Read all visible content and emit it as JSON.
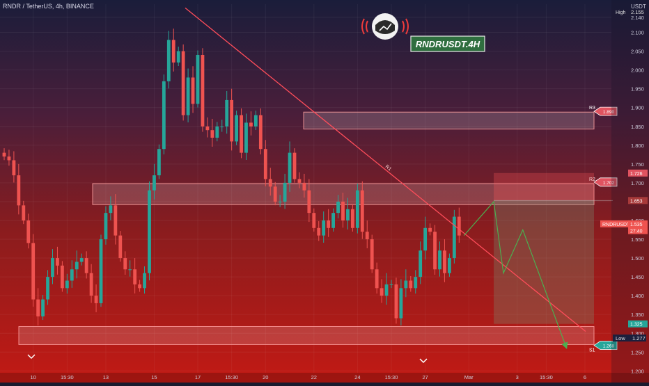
{
  "header": {
    "symbol_line": "RNDR / TetherUS, 4h, BINANCE",
    "currency": "USDT",
    "high_label": "High",
    "high_value": "2.155"
  },
  "banner": {
    "title": "RNDRUSDT.4H"
  },
  "colors": {
    "up": "#26a69a",
    "down": "#ef5350",
    "trendline": "#ff4d5a",
    "projection": "#4caf50",
    "zone_fill": "rgba(255,255,255,0.16)",
    "zone_stroke": "rgba(255,160,160,0.85)"
  },
  "chart_data": {
    "type": "candlestick",
    "y_axis": {
      "ylim": [
        1.195,
        2.175
      ],
      "ticks": [
        "1.200",
        "1.250",
        "1.300",
        "1.350",
        "1.400",
        "1.450",
        "1.500",
        "1.550",
        "1.600",
        "1.650",
        "1.700",
        "1.750",
        "1.800",
        "1.850",
        "1.900",
        "1.950",
        "2.000",
        "2.050",
        "2.100",
        "2.140"
      ]
    },
    "x_axis": {
      "ticks": [
        {
          "label": "10",
          "bar": 6
        },
        {
          "label": "15:30",
          "bar": 13
        },
        {
          "label": "13",
          "bar": 21
        },
        {
          "label": "15",
          "bar": 31
        },
        {
          "label": "17",
          "bar": 40
        },
        {
          "label": "15:30",
          "bar": 47
        },
        {
          "label": "20",
          "bar": 54
        },
        {
          "label": "22",
          "bar": 64
        },
        {
          "label": "24",
          "bar": 73
        },
        {
          "label": "15:30",
          "bar": 80
        },
        {
          "label": "27",
          "bar": 87
        },
        {
          "label": "Mar",
          "bar": 96
        },
        {
          "label": "3",
          "bar": 106
        },
        {
          "label": "15:30",
          "bar": 112
        },
        {
          "label": "6",
          "bar": 120
        }
      ]
    },
    "close": [
      1.77,
      1.76,
      1.72,
      1.64,
      1.6,
      1.54,
      1.39,
      1.345,
      1.39,
      1.45,
      1.5,
      1.48,
      1.42,
      1.44,
      1.47,
      1.49,
      1.5,
      1.46,
      1.4,
      1.38,
      1.55,
      1.62,
      1.64,
      1.56,
      1.5,
      1.47,
      1.47,
      1.43,
      1.42,
      1.46,
      1.68,
      1.72,
      1.79,
      1.97,
      2.08,
      2.02,
      2.05,
      1.88,
      1.98,
      1.91,
      2.04,
      1.85,
      1.84,
      1.82,
      1.85,
      1.85,
      1.92,
      1.81,
      1.88,
      1.78,
      1.86,
      1.85,
      1.88,
      1.79,
      1.71,
      1.69,
      1.65,
      1.65,
      1.7,
      1.78,
      1.71,
      1.7,
      1.68,
      1.62,
      1.58,
      1.56,
      1.6,
      1.58,
      1.62,
      1.65,
      1.6,
      1.63,
      1.58,
      1.68,
      1.57,
      1.55,
      1.47,
      1.42,
      1.4,
      1.43,
      1.43,
      1.34,
      1.42,
      1.44,
      1.42,
      1.45,
      1.52,
      1.58,
      1.57,
      1.47,
      1.52,
      1.46,
      1.5,
      1.61,
      1.56
    ],
    "markers": [
      {
        "label": "1.726",
        "value": 1.726,
        "bg": "#e05360"
      },
      {
        "label": "1.653",
        "value": 1.653,
        "bg": "#a83a3a"
      },
      {
        "label": "RNDRUSDT",
        "value": 1.591,
        "bg": "#ef5350"
      },
      {
        "label": "1.535",
        "value": 1.591,
        "bg": "#ef5350"
      },
      {
        "label": "27:40",
        "value": 1.573,
        "bg": "#ef5350"
      },
      {
        "label": "1.325",
        "value": 1.325,
        "bg": "#26a69a"
      }
    ],
    "low_marker": {
      "label": "Low",
      "value_label": "1.277"
    },
    "levels": [
      {
        "name": "R3",
        "price_label": "1.890",
        "zone": [
          1.843,
          1.888
        ],
        "tag_color": "#e05360"
      },
      {
        "name": "R2",
        "price_label": "1.702",
        "zone": [
          1.642,
          1.698
        ],
        "tag_color": "#e05360"
      },
      {
        "name": "S1",
        "price_label": "1.268",
        "zone": [
          1.27,
          1.318
        ],
        "tag_color": "#26a69a"
      }
    ],
    "trendline_label": "R1",
    "trendline": [
      [
        40,
        2.165
      ],
      [
        121,
        1.305
      ]
    ],
    "projection": [
      [
        95,
        1.56
      ],
      [
        99,
        1.65
      ],
      [
        101,
        1.46
      ],
      [
        105,
        1.575
      ],
      [
        114,
        1.262
      ]
    ],
    "position_box": {
      "bar_start": 99,
      "bar_end": 117,
      "entry": 1.653,
      "stop": 1.726,
      "target": 1.325
    },
    "xlabel": "",
    "ylabel": ""
  }
}
